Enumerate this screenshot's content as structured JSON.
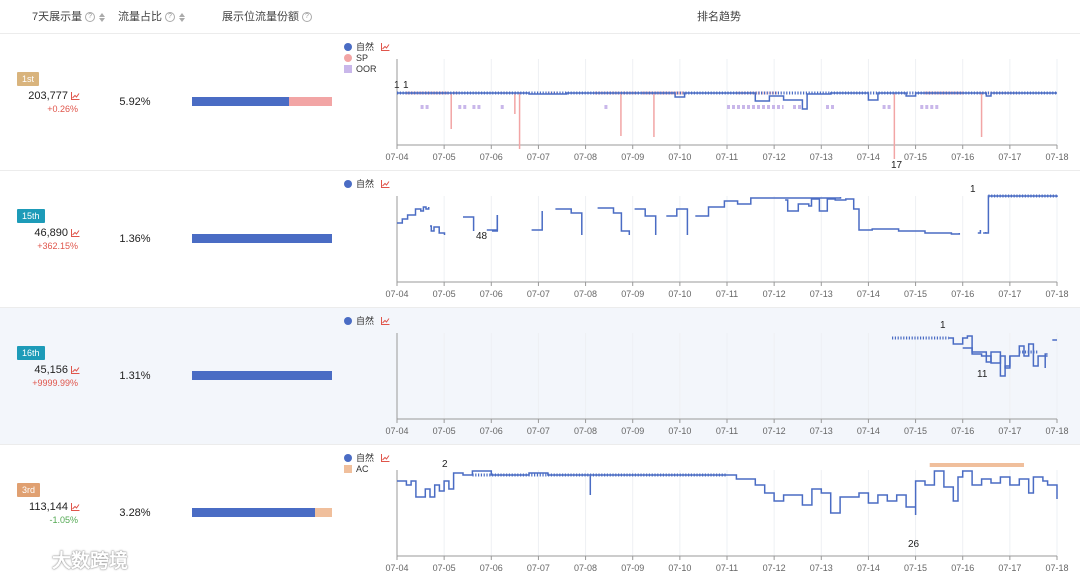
{
  "header": {
    "impressions": "7天展示量",
    "traffic_share": "流量占比",
    "slot_share": "展示位流量份额",
    "rank_trend": "排名趋势"
  },
  "x_ticks": [
    "07-04",
    "07-05",
    "07-06",
    "07-07",
    "07-08",
    "07-09",
    "07-10",
    "07-11",
    "07-12",
    "07-13",
    "07-14",
    "07-15",
    "07-16",
    "07-17",
    "07-18"
  ],
  "colors": {
    "organic": "#4a6cc4",
    "sp": "#f2a5a5",
    "oor": "#c9b7ea",
    "ac": "#f0bf9c",
    "up": "#e0554b",
    "down": "#52a852"
  },
  "rows": [
    {
      "badge": "1st",
      "badge_color": "#d9b47d",
      "impressions": "203,777",
      "change": "+0.26%",
      "change_dir": "up",
      "traffic_pct": "5.92%",
      "share": [
        {
          "ratio": 0.69,
          "color": "#4a6cc4"
        },
        {
          "ratio": 0.31,
          "color": "#f2a5a5"
        }
      ],
      "legend": [
        {
          "label": "自然",
          "color": "#4a6cc4",
          "shape": "dot",
          "trend_icon": true
        },
        {
          "label": "SP",
          "color": "#f2a5a5",
          "shape": "dot"
        },
        {
          "label": "OOR",
          "color": "#c9b7ea",
          "shape": "square"
        }
      ],
      "annotations": [
        {
          "text": "1"
        },
        {
          "text": "1"
        },
        {
          "text": "17"
        }
      ]
    },
    {
      "badge": "15th",
      "badge_color": "#1d9bb8",
      "impressions": "46,890",
      "change": "+362.15%",
      "change_dir": "up",
      "traffic_pct": "1.36%",
      "share": [
        {
          "ratio": 1.0,
          "color": "#4a6cc4"
        }
      ],
      "legend": [
        {
          "label": "自然",
          "color": "#4a6cc4",
          "shape": "dot",
          "trend_icon": true
        }
      ],
      "annotations": [
        {
          "text": "48"
        },
        {
          "text": "1"
        }
      ]
    },
    {
      "badge": "16th",
      "badge_color": "#1d9bb8",
      "impressions": "45,156",
      "change": "+9999.99%",
      "change_dir": "up",
      "traffic_pct": "1.31%",
      "share": [
        {
          "ratio": 1.0,
          "color": "#4a6cc4"
        }
      ],
      "legend": [
        {
          "label": "自然",
          "color": "#4a6cc4",
          "shape": "dot",
          "trend_icon": true
        }
      ],
      "annotations": [
        {
          "text": "1"
        },
        {
          "text": "11"
        }
      ]
    },
    {
      "badge": "3rd",
      "badge_color": "#e0a071",
      "impressions": "113,144",
      "change": "-1.05%",
      "change_dir": "down",
      "traffic_pct": "3.28%",
      "share": [
        {
          "ratio": 0.88,
          "color": "#4a6cc4"
        },
        {
          "ratio": 0.12,
          "color": "#f0bf9c"
        }
      ],
      "legend": [
        {
          "label": "自然",
          "color": "#4a6cc4",
          "shape": "dot",
          "trend_icon": true
        },
        {
          "label": "AC",
          "color": "#f0bf9c",
          "shape": "square"
        }
      ],
      "annotations": [
        {
          "text": "2"
        },
        {
          "text": "26"
        }
      ]
    }
  ],
  "watermark": "大数跨境"
}
